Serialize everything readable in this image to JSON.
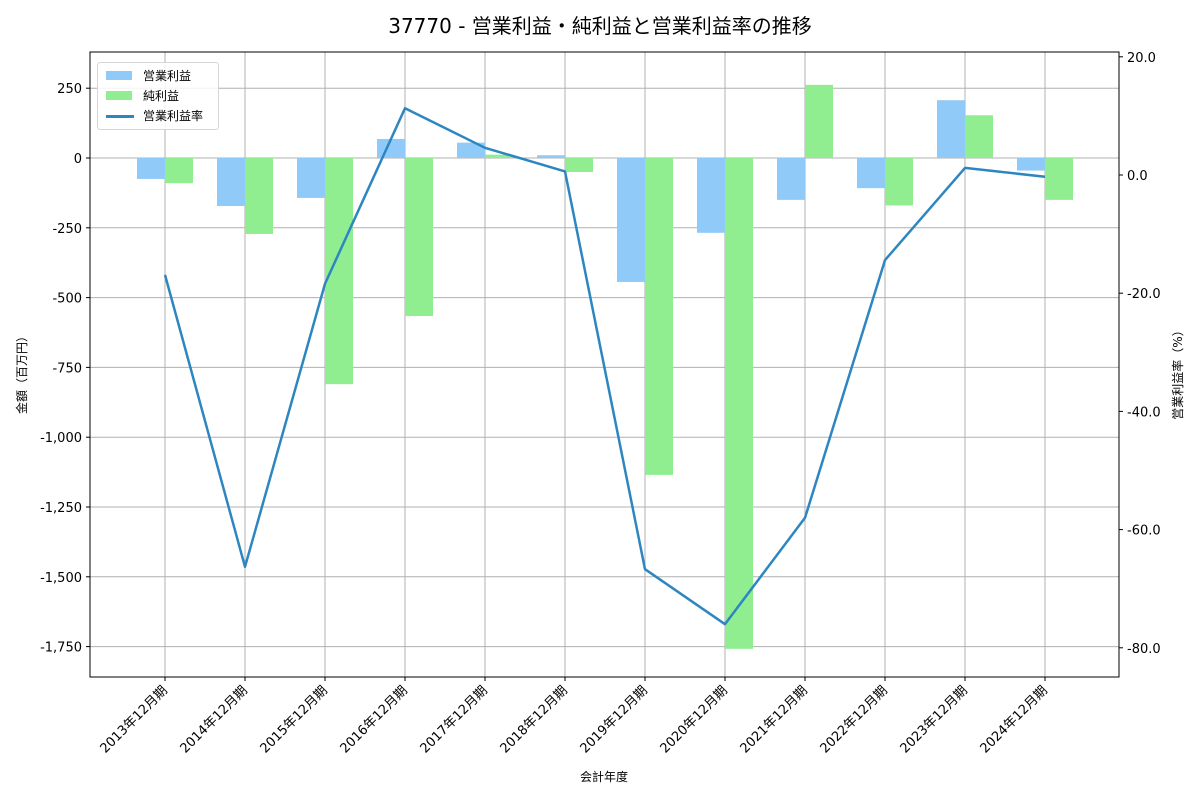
{
  "title": "37770 - 営業利益・純利益と営業利益率の推移",
  "legend": {
    "items": [
      {
        "label": "営業利益",
        "type": "bar",
        "color": "#90CAF9"
      },
      {
        "label": "純利益",
        "type": "bar",
        "color": "#90EE90"
      },
      {
        "label": "営業利益率",
        "type": "line",
        "color": "#2E86C1"
      }
    ]
  },
  "axes": {
    "xlabel": "会計年度",
    "ylabel_left": "金額（百万円）",
    "ylabel_right": "営業利益率（%）",
    "left_ticks": [
      250,
      0,
      -250,
      -500,
      -750,
      -1000,
      -1250,
      -1500,
      -1750
    ],
    "left_tick_labels": [
      "250",
      "0",
      "-250",
      "-500",
      "-750",
      "-1,000",
      "-1,250",
      "-1,500",
      "-1,750"
    ],
    "right_ticks": [
      20,
      0,
      -20,
      -40,
      -60,
      -80
    ],
    "right_tick_labels": [
      "20.0",
      "0.0",
      "-20.0",
      "-40.0",
      "-60.0",
      "-80.0"
    ]
  },
  "chart_data": {
    "type": "bar",
    "title": "37770 - 営業利益・純利益と営業利益率の推移",
    "xlabel": "会計年度",
    "ylabel": "金額（百万円）",
    "ylabel_secondary": "営業利益率（%）",
    "categories": [
      "2013年12月期",
      "2014年12月期",
      "2015年12月期",
      "2016年12月期",
      "2017年12月期",
      "2018年12月期",
      "2019年12月期",
      "2020年12月期",
      "2021年12月期",
      "2022年12月期",
      "2023年12月期",
      "2024年12月期"
    ],
    "series": [
      {
        "name": "営業利益",
        "type": "bar",
        "axis": "left",
        "color": "#90CAF9",
        "values": [
          -75,
          -172,
          -143,
          68,
          55,
          10,
          -444,
          -268,
          -150,
          -108,
          207,
          -45
        ]
      },
      {
        "name": "純利益",
        "type": "bar",
        "axis": "left",
        "color": "#90EE90",
        "values": [
          -90,
          -272,
          -810,
          -566,
          12,
          -50,
          -1135,
          -1758,
          262,
          -170,
          153,
          -150
        ]
      },
      {
        "name": "営業利益率",
        "type": "line",
        "axis": "right",
        "color": "#2E86C1",
        "values": [
          -16.9,
          -66.3,
          -18.4,
          11.3,
          4.6,
          0.6,
          -66.7,
          -76.0,
          -58.0,
          -14.4,
          1.2,
          -0.3
        ]
      }
    ],
    "ylim": [
      -1860,
      350
    ],
    "ylim_secondary": [
      -85,
      20
    ],
    "grid": true,
    "legend_position": "upper left"
  }
}
